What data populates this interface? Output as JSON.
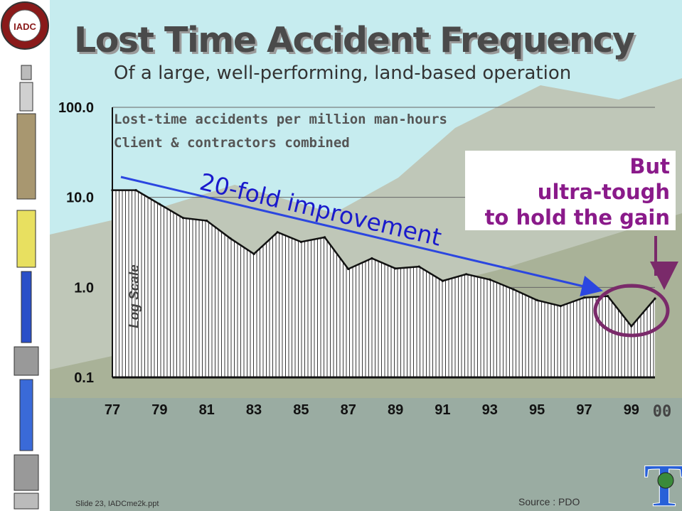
{
  "slide": {
    "title": "Lost Time Accident Frequency",
    "subtitle": "Of a large, well-performing, land-based operation",
    "footer_left": "Slide 23, IADCme2k.ppt",
    "source": "Source : PDO",
    "logo_left_text": "IADC",
    "logo_right_text": "T"
  },
  "chart_data": {
    "type": "area",
    "y_scale": "log",
    "ylim": [
      0.1,
      100.0
    ],
    "y_ticks": [
      {
        "value": 100.0,
        "label": "100.0"
      },
      {
        "value": 10.0,
        "label": "10.0"
      },
      {
        "value": 1.0,
        "label": "1.0"
      },
      {
        "value": 0.1,
        "label": "0.1"
      }
    ],
    "xlim": [
      1977,
      2000
    ],
    "x_tick_labels": [
      "77",
      "79",
      "81",
      "83",
      "85",
      "87",
      "89",
      "91",
      "93",
      "95",
      "97",
      "99"
    ],
    "x_extra_label": "00",
    "x": [
      1977,
      1978,
      1979,
      1980,
      1981,
      1982,
      1983,
      1984,
      1985,
      1986,
      1987,
      1988,
      1989,
      1990,
      1991,
      1992,
      1993,
      1994,
      1995,
      1996,
      1997,
      1998,
      1999,
      2000
    ],
    "y": [
      12.0,
      12.0,
      8.4,
      5.9,
      5.5,
      3.5,
      2.35,
      4.1,
      3.2,
      3.6,
      1.6,
      2.1,
      1.62,
      1.7,
      1.18,
      1.4,
      1.22,
      0.95,
      0.72,
      0.62,
      0.77,
      0.8,
      0.37,
      0.75
    ],
    "label_line1": "Lost-time accidents per million man-hours",
    "label_line2": "Client & contractors combined",
    "axis_note": "Log Scale",
    "trend_annotation": "20-fold improvement",
    "callout": [
      "But",
      "ultra-tough",
      "to hold the gain"
    ],
    "grid": true,
    "colors": {
      "fill_hatch": "#222222",
      "trend_arrow": "#2b46e0",
      "trend_text": "#1a1acc",
      "highlight": "#7a2a6a",
      "callout_text": "#8a1a8a"
    }
  }
}
